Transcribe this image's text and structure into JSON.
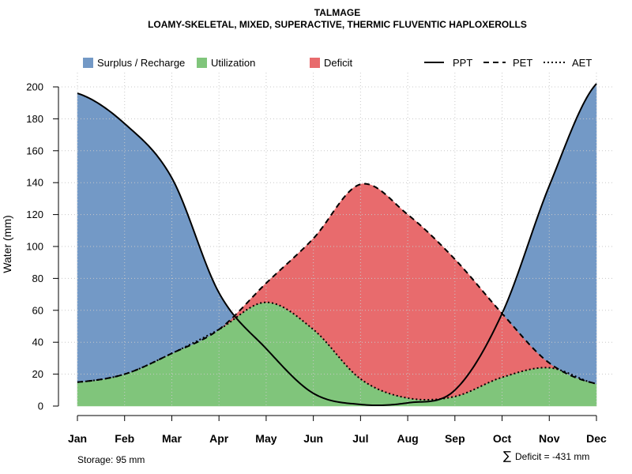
{
  "chart_data": {
    "type": "area",
    "title": "TALMAGE",
    "subtitle": "LOAMY-SKELETAL, MIXED, SUPERACTIVE, THERMIC FLUVENTIC HAPLOXEROLLS",
    "xlabel": "",
    "ylabel": "Water (mm)",
    "ylim": [
      0,
      210
    ],
    "yticks": [
      0,
      20,
      40,
      60,
      80,
      100,
      120,
      140,
      160,
      180,
      200
    ],
    "categories": [
      "Jan",
      "Feb",
      "Mar",
      "Apr",
      "May",
      "Jun",
      "Jul",
      "Aug",
      "Sep",
      "Oct",
      "Nov",
      "Dec"
    ],
    "grid": true,
    "series": [
      {
        "name": "PPT",
        "style": "solid",
        "values": [
          196,
          177,
          143,
          71,
          36,
          8,
          1,
          2,
          10,
          58,
          138,
          202
        ]
      },
      {
        "name": "PET",
        "style": "dashed",
        "values": [
          15,
          20,
          33,
          48,
          77,
          105,
          139,
          120,
          92,
          58,
          27,
          14
        ]
      },
      {
        "name": "AET",
        "style": "dotted",
        "values": [
          15,
          20,
          33,
          48,
          65,
          48,
          17,
          5,
          6,
          18,
          24,
          14
        ]
      }
    ],
    "areas": [
      {
        "name": "Surplus / Recharge",
        "color": "#7399c6"
      },
      {
        "name": "Utilization",
        "color": "#80c57b"
      },
      {
        "name": "Deficit",
        "color": "#e86b6d"
      }
    ],
    "legend": {
      "placement": "top",
      "fills": [
        "Surplus / Recharge",
        "Utilization",
        "Deficit"
      ],
      "lines": [
        "PPT",
        "PET",
        "AET"
      ]
    },
    "annotations": {
      "storage": "Storage: 95 mm",
      "deficit_symbol": "∑",
      "deficit": "Deficit = -431 mm"
    }
  }
}
